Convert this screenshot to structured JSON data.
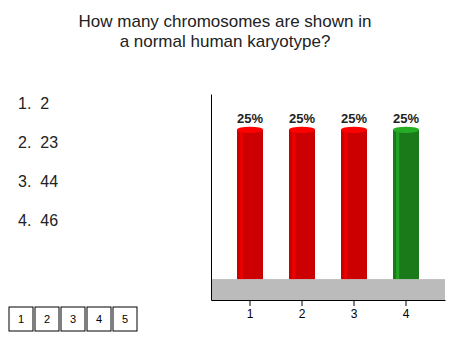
{
  "chart_data": {
    "type": "bar",
    "title": "How many chromosomes are shown in\na normal human karyotype?",
    "annotations": [
      "1.  2",
      "2.  23",
      "3.  44",
      "4.  46"
    ],
    "pages": [
      "1",
      "2",
      "3",
      "4",
      "5"
    ],
    "categories": [
      "1",
      "2",
      "3",
      "4"
    ],
    "values": [
      25,
      25,
      25,
      25
    ],
    "value_labels": [
      "25%",
      "25%",
      "25%",
      "25%"
    ],
    "colors": [
      "#cc0000",
      "#cc0000",
      "#cc0000",
      "#1a7a1a"
    ],
    "ylim": [
      -3.5,
      31
    ],
    "data_labels": true,
    "tick_labels": "x"
  }
}
